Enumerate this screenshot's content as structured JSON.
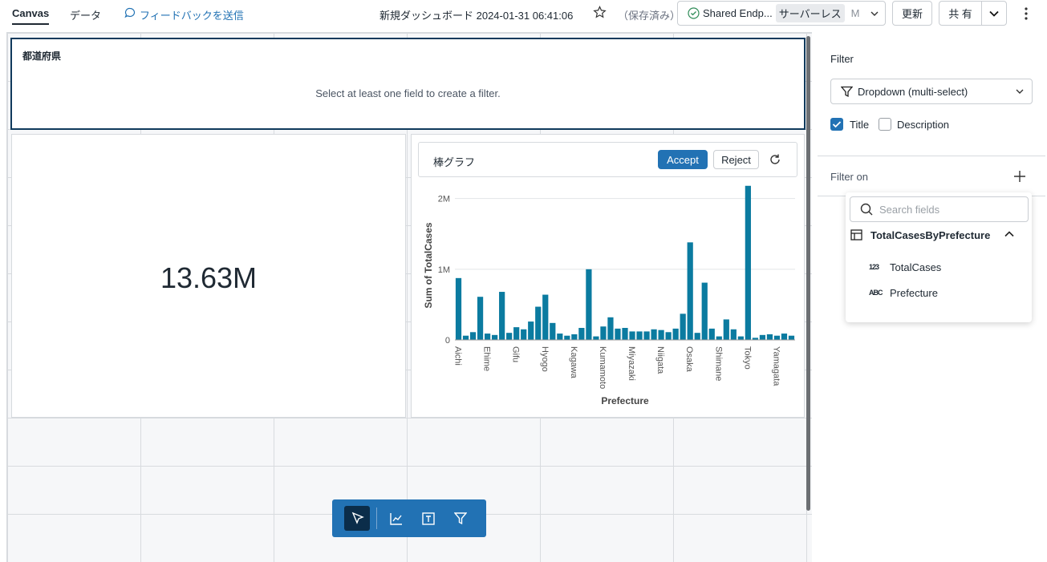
{
  "topbar": {
    "tabs": [
      "Canvas",
      "データ"
    ],
    "feedback": "フィードバックを送信",
    "dashboard_title": "新規ダッシュボード 2024-01-31 06:41:06",
    "save_status": "（保存済み）",
    "warehouse": "Shared Endp...",
    "warehouse_type": "サーバーレス",
    "warehouse_size": "M",
    "refresh": "更新",
    "share": "共 有"
  },
  "filter_widget": {
    "title": "都道府県",
    "message": "Select at least one field to create a filter."
  },
  "counter_widget": {
    "value": "13.63M"
  },
  "chart_widget": {
    "title": "棒グラフ",
    "accept": "Accept",
    "reject": "Reject"
  },
  "chart_data": {
    "type": "bar",
    "x_label": "Prefecture",
    "y_label": "Sum of TotalCases",
    "categories": [
      "Aichi",
      null,
      null,
      null,
      "Ehime",
      null,
      null,
      null,
      "Gifu",
      null,
      null,
      null,
      "Hyogo",
      null,
      null,
      null,
      "Kagawa",
      null,
      null,
      null,
      "Kumamoto",
      null,
      null,
      null,
      "Miyazaki",
      null,
      null,
      null,
      "Niigata",
      null,
      null,
      null,
      "Osaka",
      null,
      null,
      null,
      "Shimane",
      null,
      null,
      null,
      "Tokyo",
      null,
      null,
      null,
      "Yamagata",
      null,
      null
    ],
    "values": [
      875000,
      60000,
      110000,
      610000,
      90000,
      70000,
      680000,
      100000,
      180000,
      150000,
      260000,
      470000,
      640000,
      240000,
      90000,
      60000,
      80000,
      170000,
      1000000,
      50000,
      190000,
      320000,
      160000,
      170000,
      120000,
      120000,
      120000,
      150000,
      140000,
      110000,
      160000,
      370000,
      1380000,
      100000,
      810000,
      160000,
      50000,
      290000,
      150000,
      50000,
      2180000,
      30000,
      70000,
      80000,
      60000,
      90000,
      60000
    ],
    "color": "#0b7ba0",
    "ylim": [
      0,
      2200000
    ],
    "yticks": [
      0,
      {
        "value": 1000000,
        "label": "1M"
      },
      {
        "value": 2000000,
        "label": "2M"
      }
    ],
    "grid": true
  },
  "panel": {
    "title": "Filter",
    "dropdown": "Dropdown (multi-select)",
    "title_checkbox": "Title",
    "description_checkbox": "Description",
    "filter_on": "Filter on",
    "search_placeholder": "Search fields",
    "table": "TotalCasesByPrefecture",
    "fields": [
      {
        "icon": "123",
        "name": "TotalCases"
      },
      {
        "icon": "ABC",
        "name": "Prefecture"
      }
    ]
  }
}
